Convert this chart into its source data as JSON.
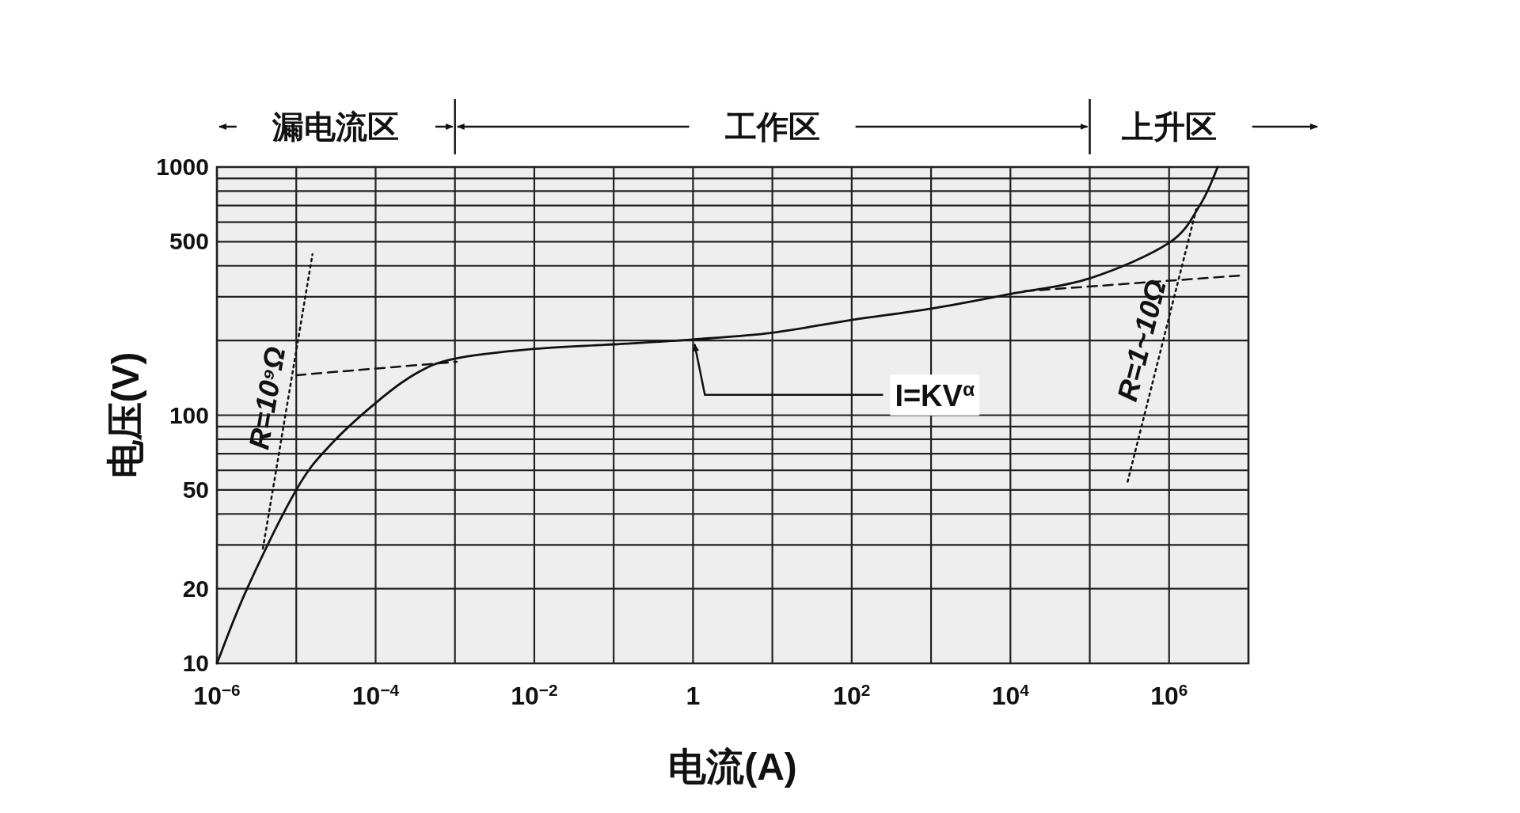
{
  "chart_data": {
    "type": "line",
    "legend": "top",
    "xlabel": "电流(A)",
    "ylabel": "电压(V)",
    "log": "xy",
    "grid": true,
    "xlim": [
      1e-06,
      10000000.0
    ],
    "ylim": [
      10,
      1000
    ],
    "xticks": [
      {
        "value": 1e-06,
        "label": "10$^{−6}$"
      },
      {
        "value": 1e-05,
        "label": null
      },
      {
        "value": 0.0001,
        "label": "10$^{−4}$"
      },
      {
        "value": 0.001,
        "label": null
      },
      {
        "value": 0.01,
        "label": "10$^{−2}$"
      },
      {
        "value": 0.1,
        "label": null
      },
      1,
      {
        "value": 10,
        "label": null
      },
      {
        "value": 100,
        "label": "10$^{2}$"
      },
      {
        "value": 1000,
        "label": null
      },
      {
        "value": 10000.0,
        "label": "10$^{4}$"
      },
      {
        "value": 100000.0,
        "label": null
      },
      {
        "value": 1000000.0,
        "label": "10$^{6}$"
      },
      {
        "value": 10000000.0,
        "label": null
      }
    ],
    "yticks": [
      10,
      20,
      {
        "value": 30,
        "label": null
      },
      {
        "value": 40,
        "label": null
      },
      50,
      {
        "value": 60,
        "label": null
      },
      {
        "value": 70,
        "label": null
      },
      {
        "value": 80,
        "label": null
      },
      {
        "value": 90,
        "label": null
      },
      100,
      {
        "value": 200,
        "label": null
      },
      {
        "value": 300,
        "label": null
      },
      {
        "value": 400,
        "label": null
      },
      500,
      {
        "value": 600,
        "label": null
      },
      {
        "value": 700,
        "label": null
      },
      {
        "value": 800,
        "label": null
      },
      {
        "value": 900,
        "label": null
      },
      1000
    ],
    "series": [
      {
        "name": "I=KV$^{α}$",
        "color": "#111111",
        "x": [
          1e-06,
          2.4e-06,
          1e-05,
          2.6e-05,
          0.0001,
          0.00032,
          0.001,
          0.01,
          0.1,
          1,
          10,
          100,
          1000,
          10000.0,
          100000.0,
          1000000.0,
          2500000.0,
          4100000.0
        ],
        "values": [
          10,
          20,
          50,
          75,
          112,
          147,
          169,
          185,
          193,
          202,
          215,
          242,
          269,
          308,
          356,
          495,
          711,
          1000
        ]
      },
      {
        "name": "R=10⁹Ω",
        "color": "#111111",
        "line_style": "dotted",
        "x": [
          3.8e-06,
          1.6e-05
        ],
        "values": [
          29,
          445
        ]
      },
      {
        "color": "#111111",
        "line_style": "dashed",
        "x": [
          1e-05,
          0.00105
        ],
        "values": [
          145,
          164
        ]
      },
      {
        "color": "#111111",
        "line_style": "dashed",
        "x": [
          15000.0,
          7600000.0
        ],
        "values": [
          316,
          365
        ]
      },
      {
        "name": "R=1~10Ω",
        "color": "#111111",
        "line_style": "dotted",
        "x": [
          300000.0,
          2200000.0
        ],
        "values": [
          54,
          676
        ]
      }
    ],
    "bands": [
      {
        "axis": "x",
        "from": 1e-06,
        "to": 0.001,
        "label": "漏电流区",
        "color": "#111111"
      },
      {
        "axis": "x",
        "from": 0.001,
        "to": 100000.0,
        "label": "工作区",
        "color": "#111111"
      },
      {
        "axis": "x",
        "from": 100000.0,
        "to": 10000000.0,
        "label": "上升区",
        "color": "#111111"
      }
    ]
  }
}
